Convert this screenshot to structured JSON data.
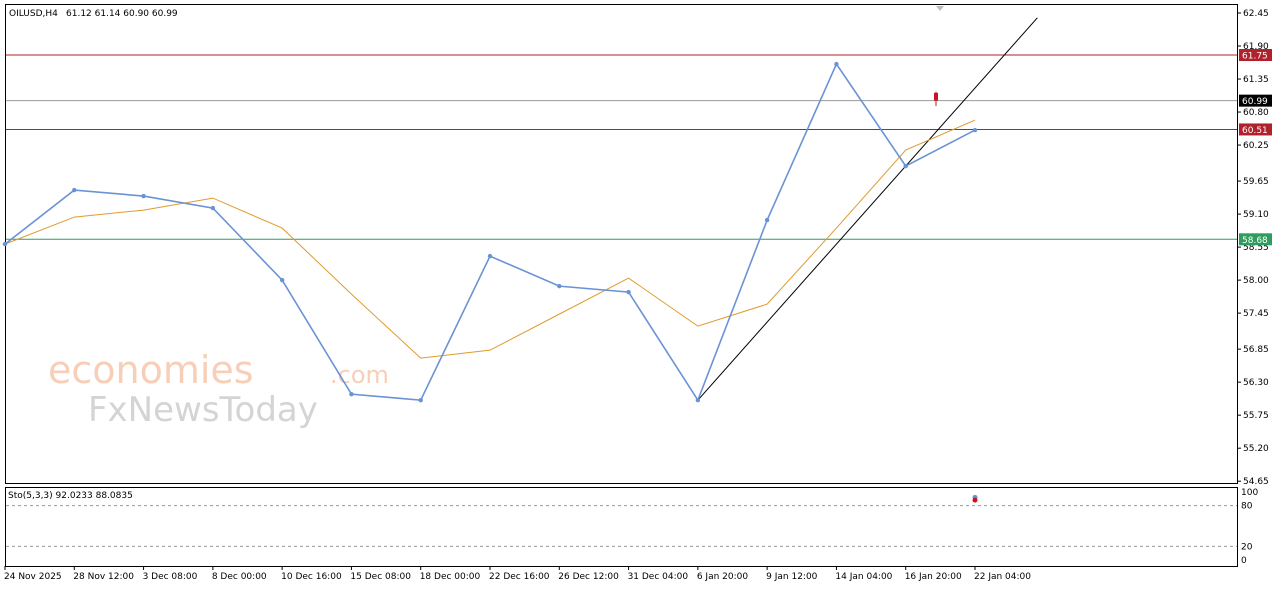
{
  "header": {
    "symbol": "OILUSD,H4",
    "ohlc": "61.12 61.14 60.90 60.99"
  },
  "stoch_label": "Sto(5,3,3) 92.0233 88.0835",
  "watermark": {
    "line1": "economies",
    "line1_suffix": ".com",
    "line2": "FxNewsToday"
  },
  "colors": {
    "bull": "#6a93d6",
    "bear": "#c8141e",
    "ma": "#e09a2c",
    "resistance": "#b0212b",
    "support": "#2e9e5e",
    "current": "#9a9a9a",
    "trendline": "#000000",
    "stoch_main": "#6a93d6",
    "stoch_signal": "#c8141e"
  },
  "chart_data": {
    "type": "line",
    "title": "OILUSD,H4",
    "x": [
      "24 Nov 2025",
      "28 Nov 12:00",
      "3 Dec 08:00",
      "8 Dec 00:00",
      "10 Dec 16:00",
      "15 Dec 08:00",
      "18 Dec 00:00",
      "22 Dec 16:00",
      "26 Dec 12:00",
      "31 Dec 04:00",
      "6 Jan 20:00",
      "9 Jan 12:00",
      "14 Jan 04:00",
      "16 Jan 20:00",
      "22 Jan 04:00"
    ],
    "series": [
      {
        "values": [
          58.6,
          59.5,
          59.4,
          59.2,
          58.0,
          56.1,
          56.0,
          58.4,
          57.9,
          57.8,
          56.0,
          59.0,
          61.6,
          59.9,
          60.5
        ]
      }
    ],
    "y_ticks": [
      62.45,
      61.9,
      61.35,
      60.8,
      60.25,
      59.65,
      59.1,
      58.55,
      58.0,
      57.45,
      56.85,
      56.3,
      55.75,
      55.2,
      54.65
    ],
    "ylim": [
      54.62,
      62.6
    ],
    "levels": {
      "resistance_high": 61.75,
      "current": 60.99,
      "resistance_low": 60.51,
      "support": 58.68
    },
    "candles": [
      {
        "label": "OILUSD,H4",
        "open": 61.12,
        "high": 61.14,
        "low": 60.9,
        "close": 60.99
      }
    ],
    "stochastic": {
      "name": "Sto(5,3,3)",
      "main": 92.0233,
      "signal": 88.0835,
      "levels": [
        80,
        20
      ],
      "scale_labels": [
        "100",
        "80",
        "20",
        "0"
      ]
    }
  }
}
